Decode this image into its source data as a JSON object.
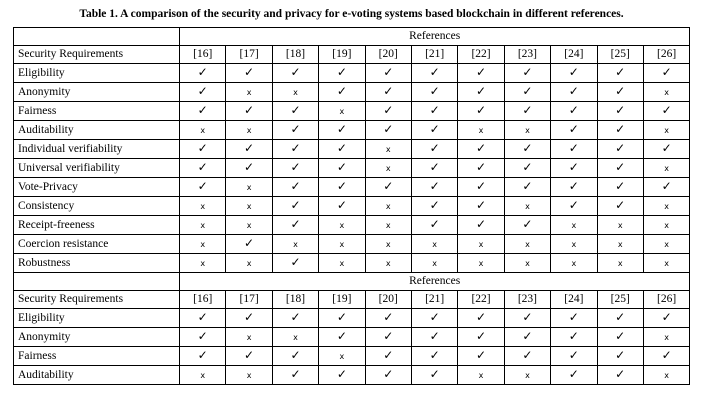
{
  "caption": "Table 1. A comparison of the security and privacy for e-voting systems based blockchain in different references.",
  "symbols": {
    "yes": "✓",
    "no": "x"
  },
  "sections": [
    {
      "group_header": "References",
      "column_header": "Security Requirements",
      "refs": [
        "[16]",
        "[17]",
        "[18]",
        "[19]",
        "[20]",
        "[21]",
        "[22]",
        "[23]",
        "[24]",
        "[25]",
        "[26]"
      ],
      "rows": [
        {
          "label": "Eligibility",
          "marks": [
            "yes",
            "yes",
            "yes",
            "yes",
            "yes",
            "yes",
            "yes",
            "yes",
            "yes",
            "yes",
            "yes"
          ]
        },
        {
          "label": "Anonymity",
          "marks": [
            "yes",
            "no",
            "no",
            "yes",
            "yes",
            "yes",
            "yes",
            "yes",
            "yes",
            "yes",
            "no"
          ]
        },
        {
          "label": "Fairness",
          "marks": [
            "yes",
            "yes",
            "yes",
            "no",
            "yes",
            "yes",
            "yes",
            "yes",
            "yes",
            "yes",
            "yes"
          ]
        },
        {
          "label": "Auditability",
          "marks": [
            "no",
            "no",
            "yes",
            "yes",
            "yes",
            "yes",
            "no",
            "no",
            "yes",
            "yes",
            "no"
          ]
        },
        {
          "label": "Individual verifiability",
          "marks": [
            "yes",
            "yes",
            "yes",
            "yes",
            "no",
            "yes",
            "yes",
            "yes",
            "yes",
            "yes",
            "yes"
          ]
        },
        {
          "label": "Universal verifiability",
          "marks": [
            "yes",
            "yes",
            "yes",
            "yes",
            "no",
            "yes",
            "yes",
            "yes",
            "yes",
            "yes",
            "no"
          ]
        },
        {
          "label": "Vote-Privacy",
          "marks": [
            "yes",
            "no",
            "yes",
            "yes",
            "yes",
            "yes",
            "yes",
            "yes",
            "yes",
            "yes",
            "yes"
          ]
        },
        {
          "label": "Consistency",
          "marks": [
            "no",
            "no",
            "yes",
            "yes",
            "no",
            "yes",
            "yes",
            "no",
            "yes",
            "yes",
            "no"
          ]
        },
        {
          "label": "Receipt-freeness",
          "marks": [
            "no",
            "no",
            "yes",
            "no",
            "no",
            "yes",
            "yes",
            "yes",
            "no",
            "no",
            "no"
          ]
        },
        {
          "label": "Coercion resistance",
          "marks": [
            "no",
            "yes",
            "no",
            "no",
            "no",
            "no",
            "no",
            "no",
            "no",
            "no",
            "no"
          ]
        },
        {
          "label": "Robustness",
          "marks": [
            "no",
            "no",
            "yes",
            "no",
            "no",
            "no",
            "no",
            "no",
            "no",
            "no",
            "no"
          ]
        }
      ]
    },
    {
      "group_header": "References",
      "column_header": "Security Requirements",
      "refs": [
        "[16]",
        "[17]",
        "[18]",
        "[19]",
        "[20]",
        "[21]",
        "[22]",
        "[23]",
        "[24]",
        "[25]",
        "[26]"
      ],
      "rows": [
        {
          "label": "Eligibility",
          "marks": [
            "yes",
            "yes",
            "yes",
            "yes",
            "yes",
            "yes",
            "yes",
            "yes",
            "yes",
            "yes",
            "yes"
          ]
        },
        {
          "label": "Anonymity",
          "marks": [
            "yes",
            "no",
            "no",
            "yes",
            "yes",
            "yes",
            "yes",
            "yes",
            "yes",
            "yes",
            "no"
          ]
        },
        {
          "label": "Fairness",
          "marks": [
            "yes",
            "yes",
            "yes",
            "no",
            "yes",
            "yes",
            "yes",
            "yes",
            "yes",
            "yes",
            "yes"
          ]
        },
        {
          "label": "Auditability",
          "marks": [
            "no",
            "no",
            "yes",
            "yes",
            "yes",
            "yes",
            "no",
            "no",
            "yes",
            "yes",
            "no"
          ]
        }
      ]
    }
  ]
}
